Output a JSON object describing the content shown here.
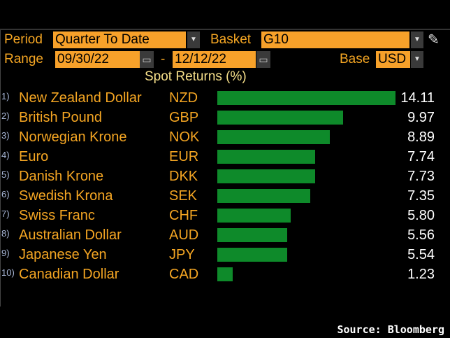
{
  "controls": {
    "period_label": "Period",
    "period_value": "Quarter To Date",
    "basket_label": "Basket",
    "basket_value": "G10",
    "range_label": "Range",
    "range_start": "09/30/22",
    "range_sep": "-",
    "range_end": "12/12/22",
    "base_label": "Base",
    "base_value": "USD"
  },
  "footer": {
    "source": "Source: Bloomberg"
  },
  "colors": {
    "bar": "#0e8a2a",
    "field": "#f7a12a",
    "label": "#f5a623"
  },
  "chart_data": {
    "type": "bar",
    "orientation": "horizontal",
    "title": "Spot Returns (%)",
    "rows": [
      {
        "rank": "1)",
        "name": "New Zealand Dollar",
        "code": "NZD",
        "value": 14.11,
        "label": "14.11"
      },
      {
        "rank": "2)",
        "name": "British Pound",
        "code": "GBP",
        "value": 9.97,
        "label": "9.97"
      },
      {
        "rank": "3)",
        "name": "Norwegian Krone",
        "code": "NOK",
        "value": 8.89,
        "label": "8.89"
      },
      {
        "rank": "4)",
        "name": "Euro",
        "code": "EUR",
        "value": 7.74,
        "label": "7.74"
      },
      {
        "rank": "5)",
        "name": "Danish Krone",
        "code": "DKK",
        "value": 7.73,
        "label": "7.73"
      },
      {
        "rank": "6)",
        "name": "Swedish Krona",
        "code": "SEK",
        "value": 7.35,
        "label": "7.35"
      },
      {
        "rank": "7)",
        "name": "Swiss Franc",
        "code": "CHF",
        "value": 5.8,
        "label": "5.80"
      },
      {
        "rank": "8)",
        "name": "Australian Dollar",
        "code": "AUD",
        "value": 5.56,
        "label": "5.56"
      },
      {
        "rank": "9)",
        "name": "Japanese Yen",
        "code": "JPY",
        "value": 5.54,
        "label": "5.54"
      },
      {
        "rank": "10)",
        "name": "Canadian Dollar",
        "code": "CAD",
        "value": 1.23,
        "label": "1.23"
      }
    ]
  }
}
